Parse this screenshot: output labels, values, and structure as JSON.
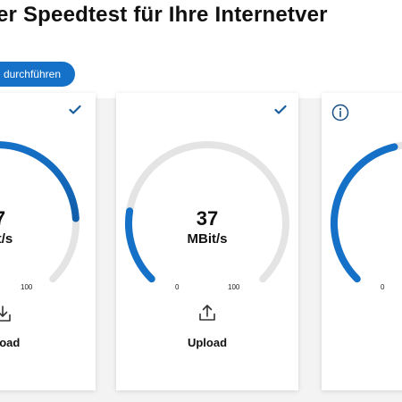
{
  "header": {
    "title": "er Speedtest für Ihre Internetver"
  },
  "actions": {
    "run_label": "durchführen"
  },
  "colors": {
    "accent": "#1570c7",
    "accent_dark": "#0d4f93",
    "track": "#e4e4e4",
    "check": "#1a5d9c"
  },
  "cards": {
    "download": {
      "value": "7",
      "unit": "Bit/s",
      "scale_max": "100",
      "label": "nload",
      "fill_fraction": 0.82,
      "status_icon": "check-icon",
      "action_icon": "download-icon"
    },
    "upload": {
      "value": "37",
      "unit": "MBit/s",
      "scale_min": "0",
      "scale_max": "100",
      "label": "Upload",
      "fill_fraction": 0.2,
      "status_icon": "check-icon",
      "action_icon": "upload-icon"
    },
    "third": {
      "scale_min": "0",
      "fill_fraction": 0.45,
      "status_icon": "info-icon"
    }
  }
}
